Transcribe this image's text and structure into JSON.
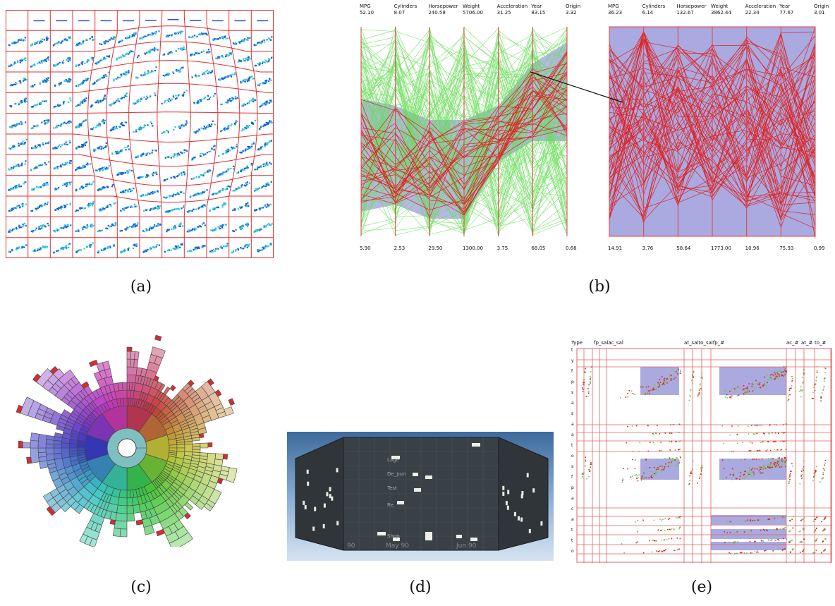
{
  "captions": {
    "a": "(a)",
    "b": "(b)",
    "c": "(c)",
    "d": "(d)",
    "e": "(e)"
  },
  "panel_b": {
    "left": {
      "axes": [
        "MPG",
        "Cylinders",
        "Horsepower",
        "Weight",
        "Acceleration",
        "Year",
        "Origin"
      ],
      "top_values": [
        "52.10",
        "8.07",
        "240.58",
        "5706.00",
        "31.25",
        "83.15",
        "3.32"
      ],
      "bottom_values": [
        "5.90",
        "2.53",
        "29.50",
        "1300.00",
        "3.75",
        "68.05",
        "0.68"
      ]
    },
    "right": {
      "axes": [
        "MPG",
        "Cylinders",
        "Horsepower",
        "Weight",
        "Acceleration",
        "Year",
        "Origin"
      ],
      "top_values": [
        "36.23",
        "6.14",
        "132.67",
        "3862.44",
        "22.34",
        "77.67",
        "3.01"
      ],
      "bottom_values": [
        "14.91",
        "3.76",
        "58.64",
        "1773.00",
        "10.96",
        "75.93",
        "0.99"
      ]
    },
    "colors": {
      "context": "#66dd55",
      "focus": "#dd2222",
      "band": "#aaaae0"
    }
  },
  "panel_d": {
    "row_labels": [
      "Lage",
      "De_pun",
      "Test",
      "Re.",
      "Shop"
    ],
    "month_labels": [
      "90",
      "May 90",
      "Jun 90"
    ]
  },
  "panel_e": {
    "column_headers": [
      "Type",
      "fp_salac_sal",
      "at_salto_salfp_#",
      "ac_#",
      "at_#",
      "to_#"
    ],
    "row_letters": [
      "t",
      "y",
      "f",
      "p",
      "s",
      "a",
      "s",
      "a",
      "a",
      "t",
      "o",
      "s",
      "f",
      "p",
      "a",
      "c",
      "a",
      "t",
      "t",
      "o"
    ],
    "colors": {
      "points_a": "#66cc55",
      "points_b": "#dd2222",
      "band": "#aaaae0",
      "grid": "#e06060"
    }
  }
}
